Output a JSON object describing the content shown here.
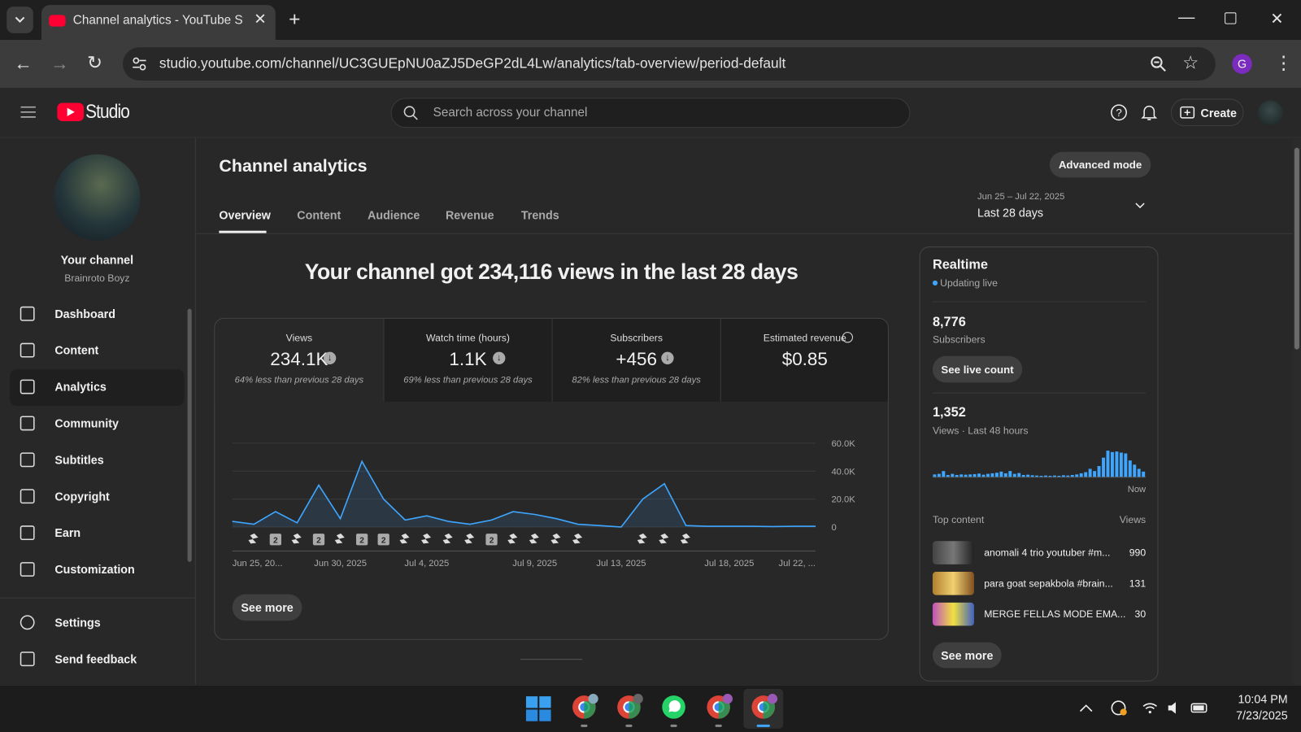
{
  "browser": {
    "tab_title": "Channel analytics - YouTube Stu",
    "url": "studio.youtube.com/channel/UC3GUEpNU0aZJ5DeGP2dL4Lw/analytics/tab-overview/period-default",
    "profile": "G"
  },
  "header": {
    "logo": "Studio",
    "search": "Search across your channel",
    "create": "Create"
  },
  "sidebar": {
    "channel_title": "Your channel",
    "channel_name": "Brainroto Boyz",
    "nav": [
      "Dashboard",
      "Content",
      "Analytics",
      "Community",
      "Subtitles",
      "Copyright",
      "Earn",
      "Customization"
    ],
    "footer": [
      "Settings",
      "Send feedback"
    ]
  },
  "main": {
    "title": "Channel analytics",
    "advanced_mode": "Advanced mode",
    "tabs": [
      "Overview",
      "Content",
      "Audience",
      "Revenue",
      "Trends"
    ],
    "date_range": "Jun 25 – Jul 22, 2025",
    "period": "Last 28 days",
    "headline": "Your channel got 234,116 views in the last 28 days",
    "metrics": [
      {
        "label": "Views",
        "value": "234.1K",
        "comparison": "64% less than previous 28 days"
      },
      {
        "label": "Watch time (hours)",
        "value": "1.1K",
        "comparison": "69% less than previous 28 days"
      },
      {
        "label": "Subscribers",
        "value": "+456",
        "comparison": "82% less than previous 28 days"
      },
      {
        "label": "Estimated revenue",
        "value": "$0.85"
      }
    ],
    "see_more": "See more"
  },
  "realtime": {
    "title": "Realtime",
    "status": "Updating live",
    "subscribers": "8,776",
    "subscribers_label": "Subscribers",
    "see_live": "See live count",
    "views": "1,352",
    "views_label": "Views · Last 48 hours",
    "top_content": "Top content",
    "views_header": "Views",
    "items": [
      {
        "title": "anomali 4 trio youtuber #m...",
        "views": 990
      },
      {
        "title": "para goat sepakbola #brain...",
        "views": 131
      },
      {
        "title": "MERGE FELLAS MODE EMA...",
        "views": 30
      }
    ],
    "see_more": "See more"
  },
  "taskbar": {
    "time": "10:04 PM",
    "date": "7/23/2025"
  },
  "chart_data": [
    {
      "type": "line",
      "color": "#3ea6ff",
      "categories": [
        "Jun 25, 20...",
        null,
        null,
        null,
        null,
        "Jun 30, 2025",
        null,
        null,
        null,
        "Jul 4, 2025",
        null,
        null,
        null,
        null,
        "Jul 9, 2025",
        null,
        null,
        null,
        "Jul 13, 2025",
        null,
        null,
        null,
        null,
        "Jul 18, 2025",
        null,
        null,
        null,
        "Jul 22, ..."
      ],
      "values": [
        4000,
        2000,
        11000,
        3000,
        30000,
        6000,
        47000,
        20000,
        5000,
        8000,
        4000,
        2000,
        5000,
        11000,
        9000,
        6000,
        2000,
        1000,
        0,
        20000,
        31000,
        1000,
        500,
        500,
        500,
        300,
        500,
        500
      ],
      "uploads": [
        0,
        1,
        2,
        1,
        2,
        1,
        2,
        2,
        1,
        1,
        1,
        1,
        2,
        1,
        1,
        1,
        1,
        0,
        0,
        1,
        1,
        1,
        0,
        0,
        0,
        0,
        0,
        0
      ],
      "ylim": [
        0,
        60000
      ],
      "yticks": [
        0,
        {
          "value": 20000,
          "label": "20.0K"
        },
        {
          "value": 40000,
          "label": "40.0K"
        },
        {
          "value": 60000,
          "label": "60.0K"
        }
      ],
      "grid": true
    },
    {
      "type": "bar",
      "color": "#3ea6ff",
      "categories": [
        null,
        null,
        null,
        null,
        null,
        null,
        null,
        null,
        null,
        null,
        null,
        null,
        null,
        null,
        null,
        null,
        null,
        null,
        null,
        null,
        null,
        null,
        null,
        null,
        null,
        null,
        null,
        null,
        null,
        null,
        null,
        null,
        null,
        null,
        null,
        null,
        null,
        null,
        null,
        null,
        null,
        null,
        null,
        null,
        null,
        null,
        null,
        "Now"
      ],
      "values": [
        10,
        12,
        22,
        8,
        12,
        8,
        10,
        9,
        10,
        11,
        13,
        9,
        12,
        14,
        16,
        20,
        14,
        22,
        12,
        15,
        8,
        9,
        7,
        6,
        5,
        6,
        5,
        6,
        5,
        7,
        6,
        8,
        10,
        14,
        18,
        30,
        22,
        40,
        70,
        95,
        90,
        92,
        88,
        85,
        60,
        45,
        30,
        20
      ]
    }
  ]
}
